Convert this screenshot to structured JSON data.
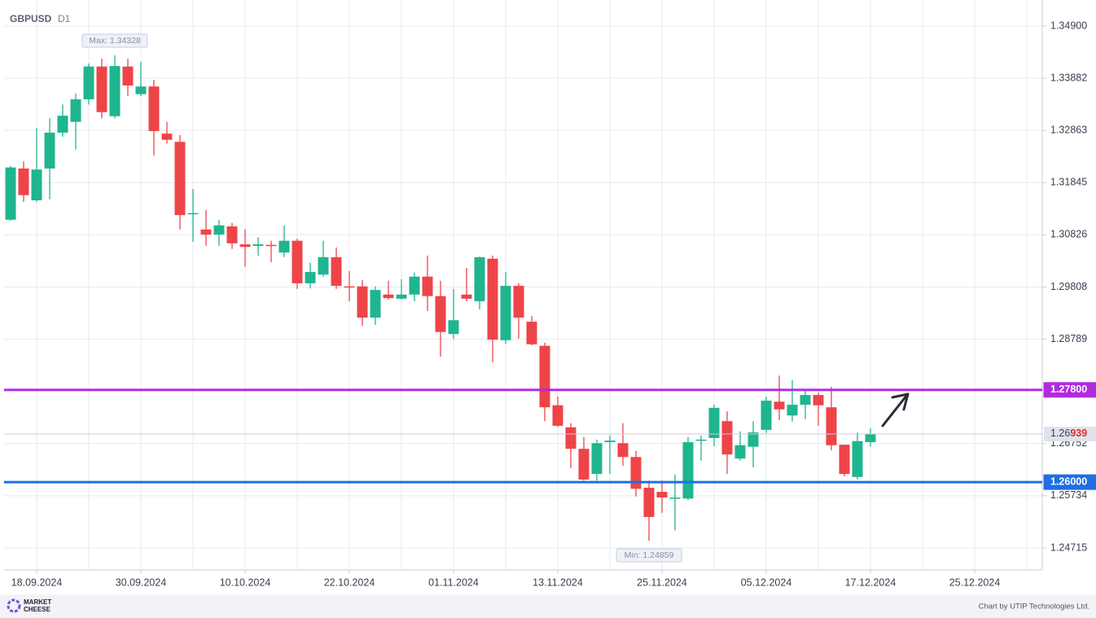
{
  "chart_data": {
    "type": "candlestick",
    "title": "GBPUSD",
    "timeframe": "D1",
    "categories": [
      null,
      null,
      "18.09.2024",
      null,
      null,
      null,
      null,
      null,
      null,
      null,
      "30.09.2024",
      null,
      null,
      null,
      null,
      null,
      null,
      null,
      "10.10.2024",
      null,
      null,
      null,
      null,
      null,
      null,
      null,
      "22.10.2024",
      null,
      null,
      null,
      null,
      null,
      null,
      null,
      "01.11.2024",
      null,
      null,
      null,
      null,
      null,
      null,
      null,
      "13.11.2024",
      null,
      null,
      null,
      null,
      null,
      null,
      null,
      "25.11.2024",
      null,
      null,
      null,
      null,
      null,
      null,
      null,
      "05.12.2024",
      null,
      null,
      null,
      null,
      null,
      null,
      null,
      "17.12.2024",
      null,
      null,
      null,
      null,
      null,
      null,
      null,
      "25.12.2024",
      null,
      null,
      null,
      null
    ],
    "open": [
      1.3112,
      1.3212,
      1.315,
      1.3212,
      1.3282,
      1.3303,
      1.3347,
      1.3411,
      1.3314,
      1.3411,
      1.3357,
      1.3372,
      1.328,
      1.3264,
      1.3123,
      1.3093,
      1.3083,
      1.3099,
      1.3064,
      1.3061,
      1.3063,
      1.3048,
      1.3071,
      1.2988,
      1.3005,
      1.3039,
      1.2982,
      1.2982,
      1.2921,
      1.2966,
      1.2958,
      1.2966,
      1.3001,
      1.2963,
      1.2889,
      1.2966,
      1.2953,
      1.3036,
      1.2877,
      1.2983,
      1.2913,
      1.2866,
      1.275,
      1.2707,
      1.2665,
      1.2616,
      1.2678,
      1.2676,
      1.2649,
      1.2589,
      1.2581,
      1.2568,
      1.2568,
      1.2681,
      1.2686,
      1.2719,
      1.2646,
      1.2669,
      1.2702,
      1.2757,
      1.273,
      1.2751,
      1.277,
      1.2746,
      1.2673,
      1.261,
      1.2678,
      null,
      null,
      null,
      null,
      null,
      null,
      null,
      null,
      null,
      null,
      null,
      null
    ],
    "high": [
      1.3217,
      1.3226,
      1.3291,
      1.331,
      1.3337,
      1.3358,
      1.3417,
      1.3426,
      1.34328,
      1.3426,
      1.342,
      1.3385,
      1.3303,
      1.3277,
      1.3172,
      1.3131,
      1.3112,
      1.3106,
      1.3093,
      1.3078,
      1.3071,
      1.3101,
      1.3075,
      1.3028,
      1.3071,
      1.3058,
      1.3012,
      1.2994,
      1.2982,
      1.2993,
      1.2996,
      1.3009,
      1.3042,
      1.2993,
      1.2977,
      1.3018,
      1.304,
      1.3042,
      1.301,
      1.2988,
      1.2924,
      1.2872,
      1.2767,
      1.2715,
      1.2688,
      1.2683,
      1.2691,
      1.2715,
      1.2661,
      1.2603,
      1.2603,
      1.2615,
      1.2688,
      1.2691,
      1.2751,
      1.2738,
      1.2699,
      1.2719,
      1.2767,
      1.2808,
      1.2799,
      1.2778,
      1.2775,
      1.2786,
      1.2673,
      1.2697,
      1.2705,
      null,
      null,
      null,
      null,
      null,
      null,
      null,
      null,
      null,
      null,
      null,
      null
    ],
    "low": [
      1.311,
      1.3147,
      1.3147,
      1.3152,
      1.3274,
      1.3249,
      1.3337,
      1.331,
      1.331,
      1.3353,
      1.3353,
      1.3237,
      1.3261,
      1.3093,
      1.3069,
      1.3061,
      1.3061,
      1.3055,
      1.302,
      1.3042,
      1.3029,
      1.3039,
      1.2977,
      1.2978,
      1.3001,
      1.2977,
      1.2953,
      1.2905,
      1.2907,
      1.2956,
      1.2956,
      1.2953,
      1.2934,
      1.2845,
      1.288,
      1.2953,
      1.2937,
      1.2834,
      1.287,
      1.288,
      1.2867,
      1.2719,
      1.2708,
      1.2627,
      1.2603,
      1.2603,
      1.2616,
      1.2632,
      1.2572,
      1.24859,
      1.254,
      1.2506,
      1.2565,
      1.2642,
      1.267,
      1.2616,
      1.2642,
      1.2629,
      1.2696,
      1.2721,
      1.2718,
      1.2723,
      1.271,
      1.2662,
      1.2611,
      1.2605,
      1.2669,
      null,
      null,
      null,
      null,
      null,
      null,
      null,
      null,
      null,
      null,
      null,
      null
    ],
    "close": [
      1.3214,
      1.316,
      1.321,
      1.3282,
      1.3315,
      1.3347,
      1.3411,
      1.3322,
      1.3412,
      1.3374,
      1.3372,
      1.3285,
      1.3268,
      1.3121,
      1.3125,
      1.3083,
      1.3101,
      1.3066,
      1.3059,
      1.3064,
      1.3061,
      1.3071,
      1.2988,
      1.301,
      1.3039,
      1.2983,
      1.298,
      1.2921,
      1.2975,
      1.2959,
      1.2966,
      1.3001,
      1.2963,
      1.2893,
      1.2916,
      1.2958,
      1.3039,
      1.2878,
      1.2983,
      1.2921,
      1.2869,
      1.2746,
      1.271,
      1.2665,
      1.2605,
      1.2676,
      1.2681,
      1.2649,
      1.2587,
      1.2532,
      1.257,
      1.257,
      1.2678,
      1.2683,
      1.2745,
      1.2654,
      1.2672,
      1.2697,
      1.2759,
      1.2742,
      1.2751,
      1.277,
      1.275,
      1.2672,
      1.2616,
      1.268,
      1.26939,
      null,
      null,
      null,
      null,
      null,
      null,
      null,
      null,
      null,
      null,
      null,
      null
    ],
    "up_color": "#1fb58f",
    "down_color": "#ee4448",
    "ylim": [
      1.24286,
      1.35408
    ],
    "yticks": [
      {
        "value": 1.349,
        "label": "1.34900"
      },
      1.33882,
      1.32863,
      1.31845,
      1.30826,
      1.29808,
      1.28789,
      1.26752,
      1.25734,
      1.24715
    ],
    "grid": true,
    "levels": [
      {
        "value": 1.278,
        "label": "1.27800",
        "color": "#b22ae0"
      },
      {
        "value": 1.26,
        "label": "1.26000",
        "color": "#1e6fe3"
      }
    ],
    "last_price": {
      "value": 1.26939,
      "label_parts": [
        "1.26",
        "939"
      ]
    },
    "annotations": {
      "max": "Max: 1.34328",
      "min": "Min: 1.24859"
    },
    "brand": [
      "MARKET",
      "CHEESE"
    ],
    "credit": "Chart by UTIP Technologies Ltd."
  }
}
